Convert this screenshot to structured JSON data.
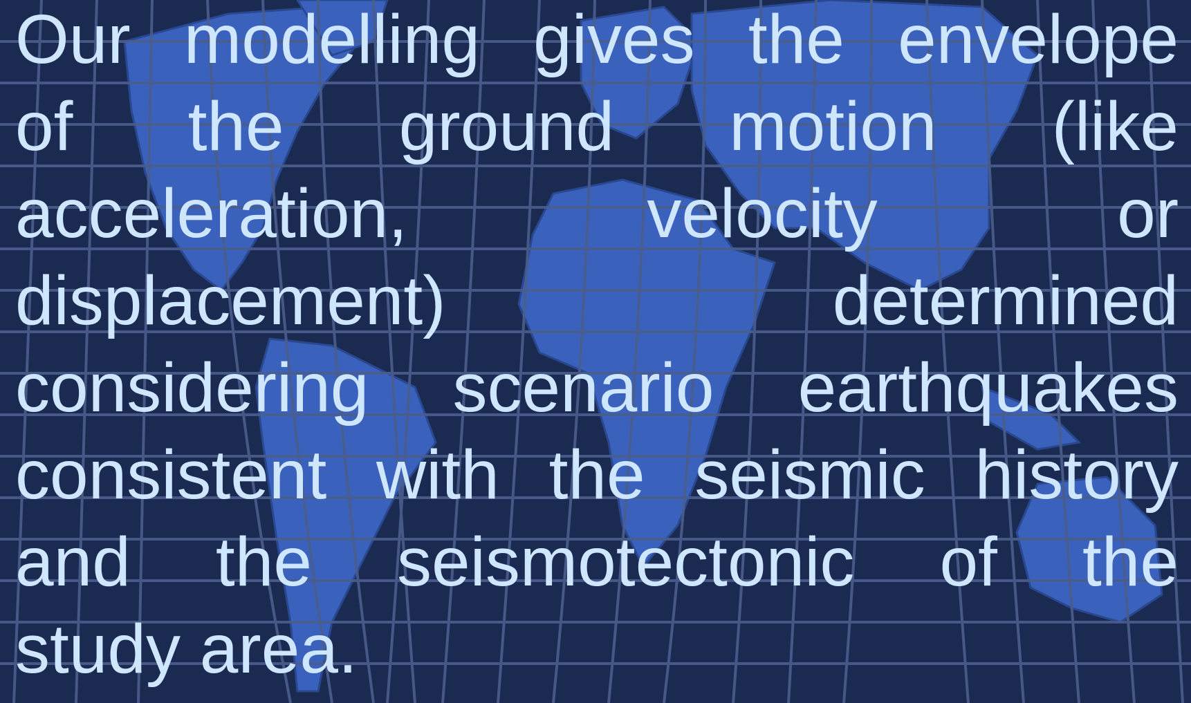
{
  "body": {
    "lines": [
      "Our modelling gives the envelope",
      "of the ground motion (like",
      "acceleration, velocity or",
      "displacement) determined",
      "considering scenario earthquakes",
      "consistent with the seismic history",
      "and the seismotectonic of the",
      "study area."
    ]
  }
}
